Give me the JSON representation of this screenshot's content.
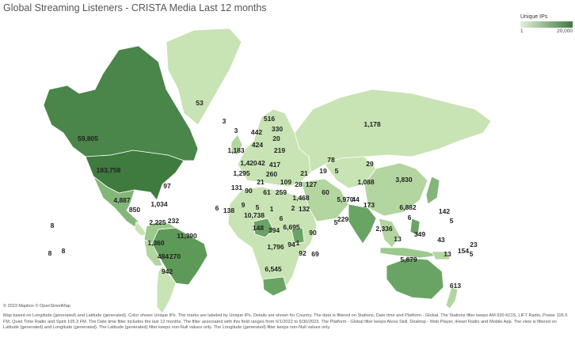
{
  "title": "Global Streaming Listeners - CRISTA Media Last 12 months",
  "legend": {
    "title": "Unique IPs",
    "min": "1",
    "max": "20,000",
    "color_min": "#e3f1d8",
    "color_max": "#3f7a3f"
  },
  "attribution": "© 2023 Mapbox © OpenStreetMap",
  "caption": "Map based on Longitude (generated) and Latitude (generated). Color shows Unique IPs. The marks are labeled by Unique IPs. Details are shown for Country. The data is filtered on Stations, Date time and Platform - Global. The Stations filter keeps AM 630 KCIS, LIFT Radio, Praise 106.5 FM, Quiet Time Radio and Spirit 105.3 FM. The Date time filter includes the last 12 months. The filter associated with this field ranges from 6/1/2022 to 6/30/2023. The Platform - Global filter keeps Alexa Skill, Desktop - Web Player, iHeart Radio and Mobile App. The view is filtered on Latitude (generated) and Longitude (generated). The Latitude (generated) filter keeps non-Null values only. The Longitude (generated) filter keeps non-Null values only.",
  "map_colors": {
    "land": "#d7ecc4",
    "dark": "#3f7a3f",
    "mid": "#5d9a58",
    "mid2": "#84b67a",
    "light": "#b3d59f"
  },
  "labels": [
    {
      "text": "59,805",
      "name": "label-canada"
    },
    {
      "text": "183,758",
      "name": "label-united-states"
    },
    {
      "text": "53",
      "name": "label-greenland"
    },
    {
      "text": "4,887",
      "name": "label-mexico"
    },
    {
      "text": "850",
      "name": "label-central-america"
    },
    {
      "text": "97",
      "name": "label-bermuda"
    },
    {
      "text": "1,034",
      "name": "label-caribbean"
    },
    {
      "text": "8",
      "name": "label-pacific-1"
    },
    {
      "text": "8",
      "name": "label-pacific-2"
    },
    {
      "text": "8",
      "name": "label-pacific-3"
    },
    {
      "text": "2,225",
      "name": "label-colombia"
    },
    {
      "text": "232",
      "name": "label-venezuela"
    },
    {
      "text": "11,390",
      "name": "label-brazil"
    },
    {
      "text": "1,360",
      "name": "label-peru"
    },
    {
      "text": "484",
      "name": "label-bolivia"
    },
    {
      "text": "270",
      "name": "label-paraguay"
    },
    {
      "text": "942",
      "name": "label-argentina"
    },
    {
      "text": "3",
      "name": "label-iceland"
    },
    {
      "text": "516",
      "name": "label-norway"
    },
    {
      "text": "330",
      "name": "label-finland"
    },
    {
      "text": "442",
      "name": "label-sweden"
    },
    {
      "text": "3",
      "name": "label-faroe"
    },
    {
      "text": "20",
      "name": "label-estonia"
    },
    {
      "text": "424",
      "name": "label-denmark"
    },
    {
      "text": "1,183",
      "name": "label-united-kingdom"
    },
    {
      "text": "219",
      "name": "label-belarus"
    },
    {
      "text": "1,420",
      "name": "label-germany"
    },
    {
      "text": "42",
      "name": "label-poland"
    },
    {
      "text": "417",
      "name": "label-ukraine"
    },
    {
      "text": "1,295",
      "name": "label-france"
    },
    {
      "text": "260",
      "name": "label-romania"
    },
    {
      "text": "21",
      "name": "label-italy"
    },
    {
      "text": "109",
      "name": "label-greece"
    },
    {
      "text": "131",
      "name": "label-spain"
    },
    {
      "text": "90",
      "name": "label-algeria"
    },
    {
      "text": "61",
      "name": "label-libya"
    },
    {
      "text": "259",
      "name": "label-egypt"
    },
    {
      "text": "28",
      "name": "label-iraq"
    },
    {
      "text": "127",
      "name": "label-iran"
    },
    {
      "text": "21",
      "name": "label-caucasus"
    },
    {
      "text": "1,468",
      "name": "label-saudi-arabia"
    },
    {
      "text": "138",
      "name": "label-senegal"
    },
    {
      "text": "6",
      "name": "label-cape-verde"
    },
    {
      "text": "9",
      "name": "label-mali"
    },
    {
      "text": "5",
      "name": "label-niger"
    },
    {
      "text": "10,738",
      "name": "label-nigeria"
    },
    {
      "text": "1",
      "name": "label-chad"
    },
    {
      "text": "6",
      "name": "label-sudan"
    },
    {
      "text": "2",
      "name": "label-ethiopia-north"
    },
    {
      "text": "132",
      "name": "label-ethiopia"
    },
    {
      "text": "148",
      "name": "label-cameroon"
    },
    {
      "text": "394",
      "name": "label-drc"
    },
    {
      "text": "6,695",
      "name": "label-kenya"
    },
    {
      "text": "1,796",
      "name": "label-zambia"
    },
    {
      "text": "94",
      "name": "label-mozambique"
    },
    {
      "text": "1",
      "name": "label-malawi"
    },
    {
      "text": "90",
      "name": "label-seychelles"
    },
    {
      "text": "92",
      "name": "label-madagascar"
    },
    {
      "text": "69",
      "name": "label-mauritius"
    },
    {
      "text": "6,545",
      "name": "label-south-africa"
    },
    {
      "text": "1,178",
      "name": "label-russia"
    },
    {
      "text": "78",
      "name": "label-kazakhstan"
    },
    {
      "text": "19",
      "name": "label-uzbekistan"
    },
    {
      "text": "5",
      "name": "label-kyrgyzstan"
    },
    {
      "text": "29",
      "name": "label-mongolia"
    },
    {
      "text": "60",
      "name": "label-pakistan"
    },
    {
      "text": "1,088",
      "name": "label-china"
    },
    {
      "text": "3,830",
      "name": "label-japan"
    },
    {
      "text": "5,970",
      "name": "label-india"
    },
    {
      "text": "44",
      "name": "label-nepal"
    },
    {
      "text": "173",
      "name": "label-myanmar"
    },
    {
      "text": "6,882",
      "name": "label-philippines"
    },
    {
      "text": "229",
      "name": "label-sri-lanka"
    },
    {
      "text": "5",
      "name": "label-maldives"
    },
    {
      "text": "6",
      "name": "label-guam"
    },
    {
      "text": "142",
      "name": "label-marshall-islands"
    },
    {
      "text": "5",
      "name": "label-kiribati"
    },
    {
      "text": "2,336",
      "name": "label-indonesia"
    },
    {
      "text": "13",
      "name": "label-timor-leste"
    },
    {
      "text": "349",
      "name": "label-papua-new-guinea"
    },
    {
      "text": "43",
      "name": "label-solomon-islands"
    },
    {
      "text": "5,679",
      "name": "label-australia"
    },
    {
      "text": "154",
      "name": "label-fiji"
    },
    {
      "text": "13",
      "name": "label-vanuatu"
    },
    {
      "text": "23",
      "name": "label-samoa"
    },
    {
      "text": "5",
      "name": "label-tonga"
    },
    {
      "text": "613",
      "name": "label-new-zealand"
    }
  ]
}
